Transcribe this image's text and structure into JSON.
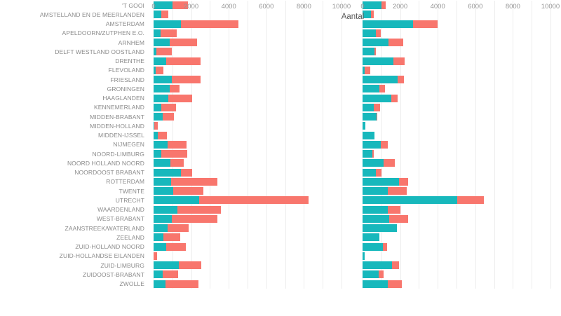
{
  "chart_data": {
    "type": "bar",
    "orientation": "horizontal",
    "stacked": true,
    "title": "",
    "xlabel": "Aantal",
    "ylabel": "",
    "xlim": [
      0,
      10900
    ],
    "x_ticks": [
      0,
      2000,
      4000,
      6000,
      8000,
      10000
    ],
    "gridline_step": 1000,
    "grid": true,
    "legend": "none",
    "colors": {
      "series_teal": "#17b8bc",
      "series_salmon": "#f8766d"
    },
    "categories": [
      "'T GOOI",
      "AMSTELLAND EN DE MEERLANDEN",
      "AMSTERDAM",
      "APELDOORN/ZUTPHEN E.O.",
      "ARNHEM",
      "DELFT WESTLAND OOSTLAND",
      "DRENTHE",
      "FLEVOLAND",
      "FRIESLAND",
      "GRONINGEN",
      "HAAGLANDEN",
      "KENNEMERLAND",
      "MIDDEN-BRABANT",
      "MIDDEN-HOLLAND",
      "MIDDEN-IJSSEL",
      "NIJMEGEN",
      "NOORD-LIMBURG",
      "NOORD HOLLAND NOORD",
      "NOORDOOST BRABANT",
      "ROTTERDAM",
      "TWENTE",
      "UTRECHT",
      "WAARDENLAND",
      "WEST-BRABANT",
      "ZAANSTREEK/WATERLAND",
      "ZEELAND",
      "ZUID-HOLLAND NOORD",
      "ZUID-HOLLANDSE EILANDEN",
      "ZUID-LIMBURG",
      "ZUIDOOST-BRABANT",
      "ZWOLLE"
    ],
    "panels": [
      {
        "name": "panel-left",
        "series": [
          {
            "name": "teal",
            "values": [
              1000,
              410,
              1440,
              375,
              840,
              160,
              690,
              100,
              960,
              840,
              780,
              410,
              500,
              30,
              225,
              750,
              410,
              910,
              1440,
              940,
              1060,
              2440,
              1250,
              960,
              750,
              540,
              690,
              0,
              1340,
              500,
              625
            ]
          },
          {
            "name": "salmon",
            "values": [
              810,
              380,
              3060,
              840,
              1480,
              800,
              1810,
              430,
              1540,
              540,
              1260,
              800,
              600,
              190,
              500,
              1000,
              1380,
              710,
              600,
              2440,
              1600,
              5810,
              2350,
              2440,
              1130,
              880,
              1030,
              170,
              1190,
              790,
              1750
            ]
          }
        ]
      },
      {
        "name": "panel-right",
        "series": [
          {
            "name": "teal",
            "values": [
              990,
              450,
              2675,
              710,
              1380,
              630,
              1630,
              125,
              1880,
              880,
              1540,
              585,
              730,
              150,
              635,
              985,
              510,
              1130,
              710,
              1950,
              1330,
              5025,
              1355,
              1420,
              1815,
              895,
              1080,
              125,
              1580,
              860,
              1330
            ]
          },
          {
            "name": "salmon",
            "values": [
              225,
              160,
              1320,
              250,
              780,
              80,
              600,
              290,
              310,
              320,
              340,
              340,
              60,
              0,
              0,
              375,
              75,
              570,
              310,
              460,
              1020,
              1430,
              645,
              1000,
              0,
              0,
              240,
              0,
              370,
              270,
              750
            ]
          }
        ]
      }
    ]
  }
}
